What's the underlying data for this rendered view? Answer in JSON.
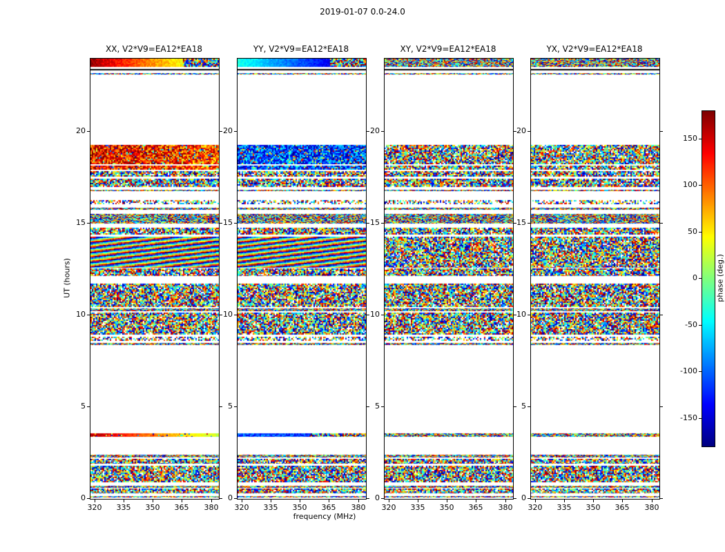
{
  "figure_title": "2019-01-07 0.0-24.0",
  "axes": {
    "x_label": "frequency (MHz)",
    "y_label": "UT (hours)",
    "x_ticks": [
      320,
      335,
      350,
      365,
      380
    ],
    "y_ticks": [
      0,
      5,
      10,
      15,
      20
    ],
    "x_range": [
      318,
      384
    ],
    "y_range": [
      0,
      24
    ]
  },
  "colorbar": {
    "label": "phase (deg.)",
    "ticks": [
      150,
      100,
      50,
      0,
      -50,
      -100,
      -150
    ],
    "range": [
      -180,
      180
    ],
    "colormap": "jet"
  },
  "chart_data": {
    "type": "heatmap",
    "title": "2019-01-07 0.0-24.0",
    "xlabel": "frequency (MHz)",
    "ylabel": "UT (hours)",
    "zlabel": "phase (deg.)",
    "x_range_mhz": [
      318,
      384
    ],
    "y_range_hours": [
      0,
      24
    ],
    "z_range_deg": [
      -180,
      180
    ],
    "colormap": "jet",
    "panels": [
      {
        "pol": "XX",
        "title": "XX, V2*V9=EA12*EA18"
      },
      {
        "pol": "YY",
        "title": "YY, V2*V9=EA12*EA18"
      },
      {
        "pol": "XY",
        "title": "XY, V2*V9=EA12*EA18"
      },
      {
        "pol": "YX",
        "title": "YX, V2*V9=EA12*EA18"
      }
    ],
    "bands": [
      {
        "t": [
          23.55,
          24.0
        ],
        "styles": {
          "XX": "gradient-warm",
          "YY": "gradient-cool",
          "XY": "fine",
          "YX": "fine"
        }
      },
      {
        "t": [
          23.36,
          23.42
        ],
        "styles": {
          "all": "dark"
        }
      },
      {
        "t": [
          23.12,
          23.2
        ],
        "styles": {
          "all": "fine"
        }
      },
      {
        "t": [
          18.25,
          19.3
        ],
        "styles": {
          "XX": "warm",
          "YY": "cool",
          "XY": "noise",
          "YX": "noise"
        }
      },
      {
        "t": [
          17.95,
          18.18
        ],
        "styles": {
          "XX": "warm",
          "YY": "cool",
          "XY": "noise",
          "YX": "noise"
        }
      },
      {
        "t": [
          17.55,
          17.86
        ],
        "styles": {
          "all": "noise"
        }
      },
      {
        "t": [
          17.0,
          17.45
        ],
        "styles": {
          "all": "noise"
        }
      },
      {
        "t": [
          16.78,
          16.86
        ],
        "styles": {
          "all": "fine"
        }
      },
      {
        "t": [
          16.05,
          16.3
        ],
        "styles": {
          "all": "sparse"
        }
      },
      {
        "t": [
          15.78,
          15.86
        ],
        "styles": {
          "all": "fine"
        }
      },
      {
        "t": [
          15.0,
          15.55
        ],
        "styles": {
          "all": "fine"
        }
      },
      {
        "t": [
          14.4,
          14.8
        ],
        "styles": {
          "all": "noise"
        }
      },
      {
        "t": [
          12.6,
          14.3
        ],
        "styles": {
          "XX": "stripes",
          "YY": "stripes",
          "XY": "noise",
          "YX": "noise"
        }
      },
      {
        "t": [
          12.15,
          12.55
        ],
        "styles": {
          "all": "noise"
        }
      },
      {
        "t": [
          10.45,
          11.75
        ],
        "styles": {
          "all": "noise"
        }
      },
      {
        "t": [
          10.22,
          10.38
        ],
        "styles": {
          "all": "fine"
        }
      },
      {
        "t": [
          8.95,
          10.15
        ],
        "styles": {
          "all": "noise"
        }
      },
      {
        "t": [
          8.6,
          8.85
        ],
        "styles": {
          "all": "sparse"
        }
      },
      {
        "t": [
          8.38,
          8.5
        ],
        "styles": {
          "all": "fine"
        }
      },
      {
        "t": [
          3.4,
          3.58
        ],
        "styles": {
          "XX": "warm-line",
          "YY": "cool-mix",
          "XY": "fine",
          "YX": "fine"
        }
      },
      {
        "t": [
          2.25,
          2.4
        ],
        "styles": {
          "all": "fine"
        }
      },
      {
        "t": [
          1.9,
          2.2
        ],
        "styles": {
          "all": "noise"
        }
      },
      {
        "t": [
          0.9,
          1.82
        ],
        "styles": {
          "all": "noise"
        }
      },
      {
        "t": [
          0.62,
          0.72
        ],
        "styles": {
          "all": "fine"
        }
      },
      {
        "t": [
          0.3,
          0.55
        ],
        "styles": {
          "all": "noise"
        }
      },
      {
        "t": [
          0.08,
          0.16
        ],
        "styles": {
          "all": "fine"
        }
      }
    ]
  }
}
